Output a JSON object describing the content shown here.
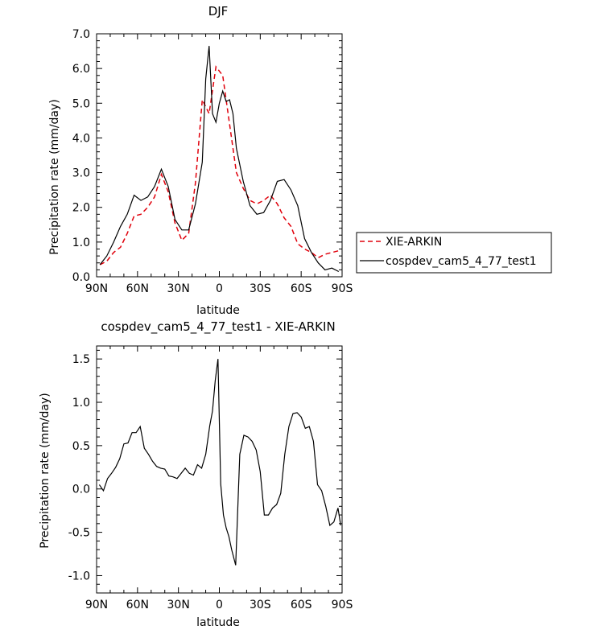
{
  "chart_data": [
    {
      "type": "line",
      "title": "DJF",
      "xlabel": "latitude",
      "ylabel": "Precipitation rate (mm/day)",
      "xlim": [
        90,
        -90
      ],
      "ylim": [
        0,
        7
      ],
      "x_ticks": [
        90,
        60,
        30,
        0,
        -30,
        -60,
        -90
      ],
      "x_tick_labels": [
        "90N",
        "60N",
        "30N",
        "0",
        "30S",
        "60S",
        "90S"
      ],
      "y_ticks": [
        0,
        1,
        2,
        3,
        4,
        5,
        6,
        7
      ],
      "y_tick_labels": [
        "0.0",
        "1.0",
        "2.0",
        "3.0",
        "4.0",
        "5.0",
        "6.0",
        "7.0"
      ],
      "legend_position": "right",
      "series": [
        {
          "name": "XIE-ARKIN",
          "color": "#e0000b",
          "dash": "dashed",
          "x": [
            87.5,
            82.5,
            77.5,
            72.5,
            67.5,
            62.5,
            57.5,
            52.5,
            47.5,
            42.5,
            37.5,
            32.5,
            27.5,
            22.5,
            17.5,
            12.5,
            7.5,
            2.5,
            -2.5,
            -7.5,
            -12.5,
            -17.5,
            -22.5,
            -27.5,
            -32.5,
            -37.5,
            -42.5,
            -47.5,
            -52.5,
            -57.5,
            -62.5,
            -67.5,
            -72.5,
            -77.5,
            -82.5,
            -87.5
          ],
          "y": [
            0.35,
            0.45,
            0.7,
            0.85,
            1.25,
            1.75,
            1.8,
            2.0,
            2.3,
            2.95,
            2.45,
            1.55,
            1.05,
            1.25,
            2.7,
            5.1,
            4.7,
            6.05,
            5.8,
            4.4,
            3.0,
            2.55,
            2.2,
            2.1,
            2.2,
            2.35,
            2.1,
            1.7,
            1.45,
            0.95,
            0.8,
            0.7,
            0.55,
            0.65,
            0.7,
            0.75
          ]
        },
        {
          "name": "cospdev_cam5_4_77_test1",
          "color": "#000000",
          "dash": "solid",
          "x": [
            87.5,
            82.5,
            77.5,
            72.5,
            67.5,
            62.5,
            57.5,
            52.5,
            47.5,
            42.5,
            37.5,
            32.5,
            27.5,
            22.5,
            17.5,
            12.5,
            10,
            7.5,
            5,
            2.5,
            0,
            -2.5,
            -5,
            -7.5,
            -10,
            -12.5,
            -17.5,
            -22.5,
            -27.5,
            -32.5,
            -37.5,
            -42.5,
            -47.5,
            -52.5,
            -57.5,
            -62.5,
            -67.5,
            -72.5,
            -77.5,
            -82.5,
            -87.5
          ],
          "y": [
            0.35,
            0.6,
            1.0,
            1.45,
            1.8,
            2.35,
            2.2,
            2.3,
            2.6,
            3.1,
            2.6,
            1.65,
            1.35,
            1.35,
            2.1,
            3.3,
            5.7,
            6.65,
            4.7,
            4.45,
            5.0,
            5.35,
            5.05,
            5.1,
            4.7,
            3.7,
            2.75,
            2.05,
            1.8,
            1.85,
            2.2,
            2.75,
            2.8,
            2.5,
            2.05,
            1.1,
            0.7,
            0.4,
            0.2,
            0.25,
            0.15
          ]
        }
      ]
    },
    {
      "type": "line",
      "title": "cospdev_cam5_4_77_test1 - XIE-ARKIN",
      "xlabel": "latitude",
      "ylabel": "Precipitation rate (mm/day)",
      "xlim": [
        90,
        -90
      ],
      "ylim": [
        -1.2,
        1.65
      ],
      "x_ticks": [
        90,
        60,
        30,
        0,
        -30,
        -60,
        -90
      ],
      "x_tick_labels": [
        "90N",
        "60N",
        "30N",
        "0",
        "30S",
        "60S",
        "90S"
      ],
      "y_ticks": [
        -1.0,
        -0.5,
        0.0,
        0.5,
        1.0,
        1.5
      ],
      "y_tick_labels": [
        "-1.0",
        "-0.5",
        "0.0",
        "0.5",
        "1.0",
        "1.5"
      ],
      "series": [
        {
          "color": "#000000",
          "dash": "solid",
          "x": [
            88,
            85,
            82,
            79,
            76,
            73,
            70,
            67,
            64,
            61,
            58,
            55,
            52,
            49,
            46,
            43,
            40,
            37,
            34,
            31,
            28,
            25,
            22,
            19,
            16,
            13,
            10,
            7,
            5,
            3,
            1,
            -1,
            -3,
            -5,
            -7,
            -9,
            -12,
            -15,
            -18,
            -21,
            -24,
            -27,
            -30,
            -33,
            -36,
            -39,
            -42,
            -45,
            -48,
            -51,
            -54,
            -57,
            -60,
            -63,
            -66,
            -69,
            -72,
            -75,
            -78,
            -81,
            -84,
            -87,
            -89
          ],
          "y": [
            0.05,
            -0.02,
            0.12,
            0.18,
            0.25,
            0.35,
            0.52,
            0.53,
            0.65,
            0.65,
            0.72,
            0.47,
            0.4,
            0.32,
            0.26,
            0.24,
            0.23,
            0.15,
            0.14,
            0.12,
            0.18,
            0.24,
            0.18,
            0.16,
            0.28,
            0.24,
            0.4,
            0.73,
            0.9,
            1.25,
            1.5,
            0.06,
            -0.3,
            -0.45,
            -0.55,
            -0.7,
            -0.88,
            0.4,
            0.62,
            0.6,
            0.55,
            0.45,
            0.2,
            -0.3,
            -0.3,
            -0.22,
            -0.18,
            -0.05,
            0.4,
            0.72,
            0.87,
            0.88,
            0.83,
            0.7,
            0.72,
            0.55,
            0.05,
            -0.02,
            -0.2,
            -0.42,
            -0.38,
            -0.22,
            -0.42
          ]
        }
      ]
    }
  ]
}
